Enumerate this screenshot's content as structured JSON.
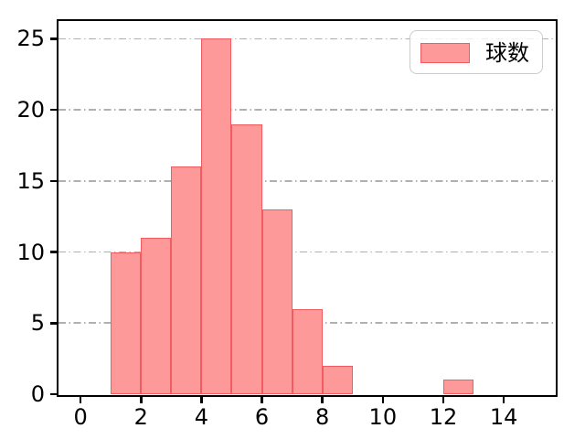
{
  "figure": {
    "background": "#ffffff"
  },
  "legend": {
    "label": "球数"
  },
  "colors": {
    "bar_fill": "#FE999A",
    "bar_edge": "#F25C60",
    "grid": "#B0B0B0",
    "spine": "#000000",
    "tick_label": "#000000",
    "legend_border": "#CCCCCC",
    "legend_background": "rgba(255,255,255,0.8)"
  },
  "chart_data": {
    "type": "bar",
    "subtype": "histogram",
    "title": "",
    "xlabel": "",
    "ylabel": "",
    "series": [
      {
        "name": "球数",
        "bars": [
          {
            "x0": 1,
            "x1": 2,
            "count": 10
          },
          {
            "x0": 2,
            "x1": 3,
            "count": 11
          },
          {
            "x0": 3,
            "x1": 4,
            "count": 16
          },
          {
            "x0": 4,
            "x1": 5,
            "count": 25
          },
          {
            "x0": 5,
            "x1": 6,
            "count": 19
          },
          {
            "x0": 6,
            "x1": 7,
            "count": 13
          },
          {
            "x0": 7,
            "x1": 8,
            "count": 6
          },
          {
            "x0": 8,
            "x1": 9,
            "count": 2
          },
          {
            "x0": 12,
            "x1": 13,
            "count": 1
          }
        ]
      }
    ],
    "x_ticks": [
      "0",
      "2",
      "4",
      "6",
      "8",
      "10",
      "12",
      "14"
    ],
    "x_tick_values": [
      0,
      2,
      4,
      6,
      8,
      10,
      12,
      14
    ],
    "y_ticks": [
      "0",
      "5",
      "10",
      "15",
      "20",
      "25"
    ],
    "y_tick_values": [
      0,
      5,
      10,
      15,
      20,
      25
    ],
    "xlim": [
      -0.73,
      15.69
    ],
    "ylim": [
      0,
      26.25
    ],
    "grid": {
      "on": true,
      "axis": "y",
      "line_style": "dash-dot"
    },
    "legend_position": "upper-right"
  }
}
